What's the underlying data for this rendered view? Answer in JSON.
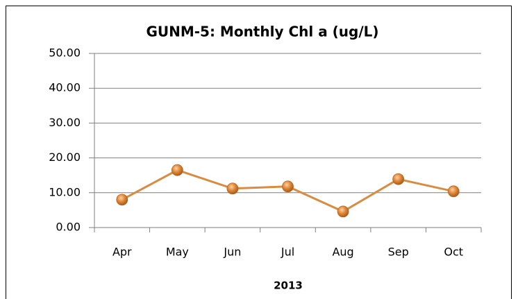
{
  "chart_data": {
    "type": "line",
    "title": "GUNM-5: Monthly Chl a (ug/L)",
    "x_label": "2013",
    "categories": [
      "Apr",
      "May",
      "Jun",
      "Jul",
      "Aug",
      "Sep",
      "Oct"
    ],
    "series": [
      {
        "name": "Chl a",
        "color": "#d98b40",
        "values": [
          8.0,
          16.5,
          11.2,
          11.8,
          4.6,
          13.9,
          10.4
        ]
      }
    ],
    "ylim": [
      0,
      50
    ],
    "yticks": [
      {
        "value": 0,
        "label": "0.00"
      },
      {
        "value": 10,
        "label": "10.00"
      },
      {
        "value": 20,
        "label": "20.00"
      },
      {
        "value": 30,
        "label": "30.00"
      },
      {
        "value": 40,
        "label": "40.00"
      },
      {
        "value": 50,
        "label": "50.00"
      }
    ],
    "grid": true,
    "legend": false
  }
}
